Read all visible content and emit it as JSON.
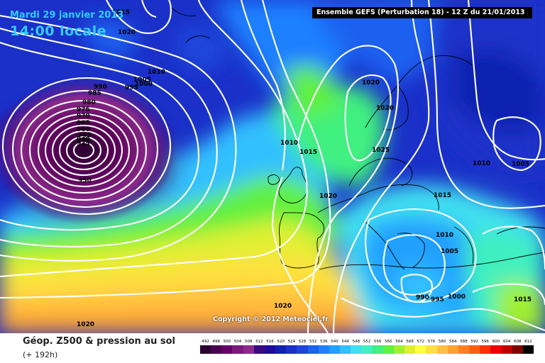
{
  "header": {
    "date": "Mardi 29 janvier 2013",
    "time": "14:00 locale",
    "run_info": "Ensemble GEFS (Perturbation 18)  -  12 Z du 21/01/2013"
  },
  "copyright": "Copyright © 2012 Meteociel.fr",
  "footer": {
    "parameter": "Géop. Z500 & pression au sol",
    "forecast_hour": "(+ 192h)"
  },
  "legend": {
    "ticks": [
      "492",
      "496",
      "500",
      "504",
      "508",
      "512",
      "516",
      "520",
      "524",
      "528",
      "532",
      "536",
      "540",
      "544",
      "548",
      "552",
      "556",
      "560",
      "564",
      "568",
      "572",
      "576",
      "580",
      "584",
      "588",
      "592",
      "596",
      "600",
      "604",
      "608",
      "612"
    ],
    "colors": [
      "#2b0030",
      "#4a0050",
      "#660066",
      "#7a1a7a",
      "#8a2a8a",
      "#3a0a80",
      "#200a9a",
      "#1020b0",
      "#1a30c8",
      "#1e46dc",
      "#1e60f0",
      "#1e80ff",
      "#20a0ff",
      "#30c0ff",
      "#40e0f0",
      "#40f0c0",
      "#40f080",
      "#60f040",
      "#a0f030",
      "#e0f030",
      "#ffff40",
      "#ffe040",
      "#ffc040",
      "#ffa030",
      "#ff8020",
      "#ff6010",
      "#ff3000",
      "#f00000",
      "#c00000",
      "#800000",
      "#000000"
    ]
  },
  "isobar_labels": [
    {
      "text": "1015"
    },
    {
      "text": "1020"
    },
    {
      "text": "1010"
    },
    {
      "text": "1005"
    },
    {
      "text": "1000"
    },
    {
      "text": "995"
    },
    {
      "text": "990"
    },
    {
      "text": "985"
    },
    {
      "text": "980"
    },
    {
      "text": "975"
    },
    {
      "text": "970"
    },
    {
      "text": "965"
    },
    {
      "text": "960"
    },
    {
      "text": "945"
    },
    {
      "text": "940"
    },
    {
      "text": "935"
    },
    {
      "text": "950"
    },
    {
      "text": "1010"
    },
    {
      "text": "1015"
    },
    {
      "text": "1020"
    },
    {
      "text": "1020"
    },
    {
      "text": "1020"
    },
    {
      "text": "1025"
    },
    {
      "text": "1010"
    },
    {
      "text": "1005"
    },
    {
      "text": "1015"
    },
    {
      "text": "1010"
    },
    {
      "text": "1005"
    },
    {
      "text": "990"
    },
    {
      "text": "995"
    },
    {
      "text": "1000"
    },
    {
      "text": "1015"
    },
    {
      "text": "1020"
    },
    {
      "text": "1020"
    }
  ]
}
